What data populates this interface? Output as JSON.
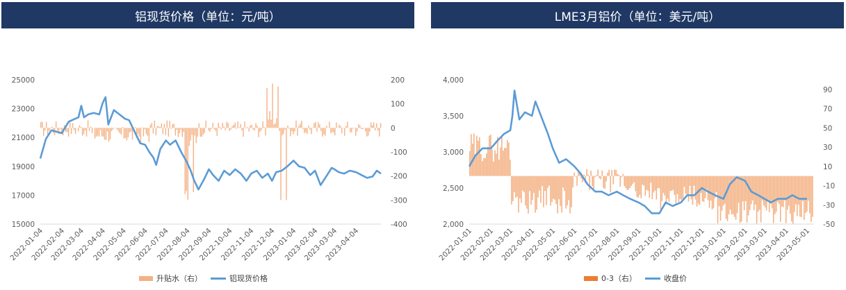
{
  "charts": [
    {
      "title": "铝现货价格（单位：元/吨）",
      "legend": [
        {
          "label": "升贴水（右）",
          "color": "#f4b183",
          "kind": "bar"
        },
        {
          "label": "铝现货价格",
          "color": "#5b9bd5",
          "kind": "line"
        }
      ]
    },
    {
      "title": "LME3月铝价（单位：美元/吨）",
      "legend": [
        {
          "label": "0-3（右）",
          "color": "#ed7d31",
          "kind": "bar"
        },
        {
          "label": "收盘价",
          "color": "#5b9bd5",
          "kind": "line"
        }
      ]
    }
  ],
  "chart_data": [
    {
      "type": "bar+line",
      "x_ticks": [
        "2022-01-04",
        "2022-02-04",
        "2022-03-04",
        "2022-04-04",
        "2022-05-04",
        "2022-06-04",
        "2022-07-04",
        "2022-08-04",
        "2022-09-04",
        "2022-10-04",
        "2022-11-04",
        "2022-12-04",
        "2023-01-04",
        "2023-02-04",
        "2023-03-04",
        "2023-04-04"
      ],
      "y_left_ticks": [
        "15000",
        "17000",
        "19000",
        "21000",
        "23000",
        "25000"
      ],
      "y_left_range": [
        15000,
        25000
      ],
      "y_right_ticks": [
        "-400",
        "-300",
        "-200",
        "-100",
        "0",
        "100",
        "200"
      ],
      "y_right_range": [
        -400,
        200
      ],
      "x_range": [
        "2022-01-04",
        "2023-05-10"
      ],
      "series": [
        {
          "axis": "left",
          "kind": "line",
          "points": [
            [
              "2022-01-04",
              19550
            ],
            [
              "2022-01-12",
              20900
            ],
            [
              "2022-01-20",
              21500
            ],
            [
              "2022-02-04",
              21300
            ],
            [
              "2022-02-14",
              22100
            ],
            [
              "2022-02-28",
              22400
            ],
            [
              "2022-03-04",
              23200
            ],
            [
              "2022-03-08",
              22400
            ],
            [
              "2022-03-14",
              22600
            ],
            [
              "2022-03-22",
              22700
            ],
            [
              "2022-03-30",
              22600
            ],
            [
              "2022-04-04",
              23400
            ],
            [
              "2022-04-08",
              23800
            ],
            [
              "2022-04-12",
              21900
            ],
            [
              "2022-04-20",
              22900
            ],
            [
              "2022-04-28",
              22600
            ],
            [
              "2022-05-06",
              22300
            ],
            [
              "2022-05-12",
              22200
            ],
            [
              "2022-05-20",
              21400
            ],
            [
              "2022-05-28",
              20600
            ],
            [
              "2022-06-04",
              20500
            ],
            [
              "2022-06-10",
              20000
            ],
            [
              "2022-06-16",
              19600
            ],
            [
              "2022-06-20",
              19100
            ],
            [
              "2022-06-26",
              20200
            ],
            [
              "2022-07-04",
              20800
            ],
            [
              "2022-07-10",
              20500
            ],
            [
              "2022-07-18",
              20800
            ],
            [
              "2022-07-26",
              20000
            ],
            [
              "2022-08-02",
              19400
            ],
            [
              "2022-08-08",
              18800
            ],
            [
              "2022-08-14",
              18000
            ],
            [
              "2022-08-20",
              17400
            ],
            [
              "2022-08-28",
              18100
            ],
            [
              "2022-09-04",
              18800
            ],
            [
              "2022-09-10",
              18400
            ],
            [
              "2022-09-18",
              18000
            ],
            [
              "2022-09-26",
              18700
            ],
            [
              "2022-10-04",
              18400
            ],
            [
              "2022-10-12",
              18800
            ],
            [
              "2022-10-20",
              18500
            ],
            [
              "2022-10-28",
              18000
            ],
            [
              "2022-11-04",
              18500
            ],
            [
              "2022-11-12",
              18700
            ],
            [
              "2022-11-20",
              18200
            ],
            [
              "2022-11-28",
              18500
            ],
            [
              "2022-12-04",
              18000
            ],
            [
              "2022-12-10",
              18600
            ],
            [
              "2022-12-18",
              18700
            ],
            [
              "2022-12-26",
              19000
            ],
            [
              "2023-01-04",
              19400
            ],
            [
              "2023-01-12",
              19000
            ],
            [
              "2023-01-20",
              18900
            ],
            [
              "2023-01-28",
              18400
            ],
            [
              "2023-02-04",
              18700
            ],
            [
              "2023-02-12",
              17700
            ],
            [
              "2023-02-20",
              18300
            ],
            [
              "2023-02-28",
              18900
            ],
            [
              "2023-03-04",
              18800
            ],
            [
              "2023-03-10",
              18600
            ],
            [
              "2023-03-18",
              18500
            ],
            [
              "2023-03-26",
              18700
            ],
            [
              "2023-04-04",
              18600
            ],
            [
              "2023-04-12",
              18400
            ],
            [
              "2023-04-20",
              18200
            ],
            [
              "2023-04-28",
              18300
            ],
            [
              "2023-05-04",
              18700
            ],
            [
              "2023-05-10",
              18500
            ]
          ]
        }
      ]
    },
    {
      "type": "bar+line",
      "x_ticks": [
        "2022-01-01",
        "2022-02-01",
        "2022-03-01",
        "2022-04-01",
        "2022-05-01",
        "2022-06-01",
        "2022-07-01",
        "2022-08-01",
        "2022-09-01",
        "2022-10-01",
        "2022-11-01",
        "2022-12-01",
        "2023-01-01",
        "2023-02-01",
        "2023-03-01",
        "2023-04-01",
        "2023-05-01"
      ],
      "y_left_ticks": [
        "2,000",
        "2,500",
        "3,000",
        "3,500",
        "4,000"
      ],
      "y_left_range": [
        2000,
        4000
      ],
      "y_right_ticks": [
        "-50",
        "-30",
        "-10",
        "10",
        "30",
        "50",
        "70",
        "90"
      ],
      "y_right_range": [
        -50,
        100
      ],
      "x_range": [
        "2022-01-01",
        "2023-05-10"
      ],
      "series": [
        {
          "axis": "left",
          "kind": "line",
          "points": [
            [
              "2022-01-01",
              2800
            ],
            [
              "2022-01-10",
              2950
            ],
            [
              "2022-01-20",
              3050
            ],
            [
              "2022-02-01",
              3050
            ],
            [
              "2022-02-10",
              3150
            ],
            [
              "2022-02-20",
              3250
            ],
            [
              "2022-03-01",
              3300
            ],
            [
              "2022-03-04",
              3500
            ],
            [
              "2022-03-07",
              3850
            ],
            [
              "2022-03-14",
              3450
            ],
            [
              "2022-03-22",
              3550
            ],
            [
              "2022-04-01",
              3500
            ],
            [
              "2022-04-06",
              3700
            ],
            [
              "2022-04-14",
              3500
            ],
            [
              "2022-04-24",
              3250
            ],
            [
              "2022-05-01",
              3050
            ],
            [
              "2022-05-10",
              2850
            ],
            [
              "2022-05-20",
              2900
            ],
            [
              "2022-06-01",
              2800
            ],
            [
              "2022-06-10",
              2700
            ],
            [
              "2022-06-20",
              2550
            ],
            [
              "2022-07-01",
              2450
            ],
            [
              "2022-07-10",
              2450
            ],
            [
              "2022-07-20",
              2400
            ],
            [
              "2022-08-01",
              2450
            ],
            [
              "2022-08-10",
              2400
            ],
            [
              "2022-08-20",
              2350
            ],
            [
              "2022-09-01",
              2300
            ],
            [
              "2022-09-10",
              2250
            ],
            [
              "2022-09-20",
              2150
            ],
            [
              "2022-10-01",
              2150
            ],
            [
              "2022-10-10",
              2300
            ],
            [
              "2022-10-20",
              2250
            ],
            [
              "2022-11-01",
              2300
            ],
            [
              "2022-11-10",
              2400
            ],
            [
              "2022-11-20",
              2400
            ],
            [
              "2022-12-01",
              2500
            ],
            [
              "2022-12-10",
              2450
            ],
            [
              "2022-12-20",
              2400
            ],
            [
              "2023-01-01",
              2350
            ],
            [
              "2023-01-10",
              2550
            ],
            [
              "2023-01-20",
              2650
            ],
            [
              "2023-02-01",
              2600
            ],
            [
              "2023-02-10",
              2450
            ],
            [
              "2023-02-20",
              2400
            ],
            [
              "2023-03-01",
              2350
            ],
            [
              "2023-03-10",
              2300
            ],
            [
              "2023-03-20",
              2350
            ],
            [
              "2023-04-01",
              2350
            ],
            [
              "2023-04-10",
              2400
            ],
            [
              "2023-04-20",
              2350
            ],
            [
              "2023-05-01",
              2350
            ]
          ]
        }
      ]
    }
  ]
}
